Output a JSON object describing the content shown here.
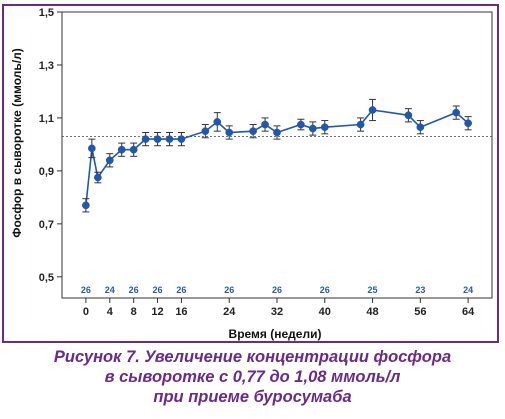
{
  "chart_data": {
    "type": "line",
    "title": "",
    "xlabel": "Время (недели)",
    "ylabel": "Фосфор в сыворотке (ммоль/л)",
    "xlim": [
      -4,
      68
    ],
    "ylim": [
      0.42,
      1.5
    ],
    "xticks": [
      0,
      4,
      8,
      12,
      16,
      24,
      32,
      40,
      48,
      56,
      64
    ],
    "yticks": [
      0.5,
      0.7,
      0.9,
      1.1,
      1.3,
      1.5
    ],
    "ytick_labels": [
      "0,5",
      "0,7",
      "0,9",
      "1,1",
      "1,3",
      "1,5"
    ],
    "reference_line": 1.03,
    "series_color": "#2058b0",
    "series": [
      {
        "x": [
          0,
          1,
          2,
          4,
          6,
          8,
          10,
          12,
          14,
          16,
          20,
          22,
          24,
          28,
          30,
          32,
          36,
          38,
          40,
          46,
          48,
          54,
          56,
          62,
          64
        ],
        "y": [
          0.77,
          0.985,
          0.875,
          0.94,
          0.98,
          0.98,
          1.02,
          1.02,
          1.02,
          1.02,
          1.05,
          1.085,
          1.045,
          1.05,
          1.075,
          1.045,
          1.075,
          1.06,
          1.065,
          1.075,
          1.13,
          1.11,
          1.065,
          1.12,
          1.08
        ],
        "err": [
          0.025,
          0.035,
          0.02,
          0.025,
          0.025,
          0.025,
          0.025,
          0.025,
          0.025,
          0.025,
          0.025,
          0.035,
          0.025,
          0.025,
          0.025,
          0.025,
          0.02,
          0.025,
          0.025,
          0.025,
          0.04,
          0.025,
          0.025,
          0.025,
          0.025
        ]
      }
    ],
    "n_counts": [
      {
        "x": 0,
        "label": "26"
      },
      {
        "x": 4,
        "label": "24"
      },
      {
        "x": 8,
        "label": "26"
      },
      {
        "x": 12,
        "label": "26"
      },
      {
        "x": 16,
        "label": "26"
      },
      {
        "x": 24,
        "label": "26"
      },
      {
        "x": 32,
        "label": "26"
      },
      {
        "x": 40,
        "label": "26"
      },
      {
        "x": 48,
        "label": "25"
      },
      {
        "x": 56,
        "label": "23"
      },
      {
        "x": 64,
        "label": "24"
      }
    ]
  },
  "caption": {
    "line1": "Рисунок 7. Увеличение концентрации фосфора",
    "line2": "в сыворотке с 0,77 до 1,08 ммоль/л",
    "line3": "при приеме буросумаба"
  }
}
